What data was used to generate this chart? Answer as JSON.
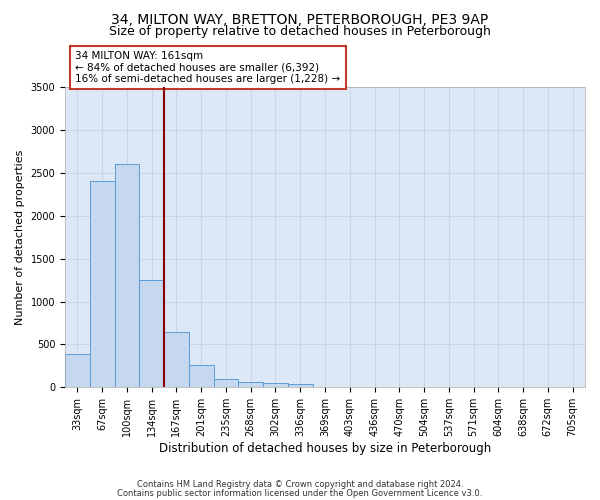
{
  "title1": "34, MILTON WAY, BRETTON, PETERBOROUGH, PE3 9AP",
  "title2": "Size of property relative to detached houses in Peterborough",
  "xlabel": "Distribution of detached houses by size in Peterborough",
  "ylabel": "Number of detached properties",
  "categories": [
    "33sqm",
    "67sqm",
    "100sqm",
    "134sqm",
    "167sqm",
    "201sqm",
    "235sqm",
    "268sqm",
    "302sqm",
    "336sqm",
    "369sqm",
    "403sqm",
    "436sqm",
    "470sqm",
    "504sqm",
    "537sqm",
    "571sqm",
    "604sqm",
    "638sqm",
    "672sqm",
    "705sqm"
  ],
  "values": [
    390,
    2400,
    2600,
    1250,
    650,
    255,
    100,
    65,
    55,
    40,
    0,
    0,
    0,
    0,
    0,
    0,
    0,
    0,
    0,
    0,
    0
  ],
  "bar_color": "#c5d8f0",
  "bar_edge_color": "#5b9bd5",
  "vline_color": "#8b0000",
  "annotation_text": "34 MILTON WAY: 161sqm\n← 84% of detached houses are smaller (6,392)\n16% of semi-detached houses are larger (1,228) →",
  "annotation_box_color": "#ffffff",
  "annotation_border_color": "#c0392b",
  "ylim": [
    0,
    3500
  ],
  "yticks": [
    0,
    500,
    1000,
    1500,
    2000,
    2500,
    3000,
    3500
  ],
  "grid_color": "#c8d4e8",
  "background_color": "#dce8f5",
  "footnote1": "Contains HM Land Registry data © Crown copyright and database right 2024.",
  "footnote2": "Contains public sector information licensed under the Open Government Licence v3.0.",
  "title1_fontsize": 10,
  "title2_fontsize": 9,
  "tick_fontsize": 7,
  "ylabel_fontsize": 8,
  "xlabel_fontsize": 8.5,
  "annot_fontsize": 7.5,
  "footnote_fontsize": 6
}
